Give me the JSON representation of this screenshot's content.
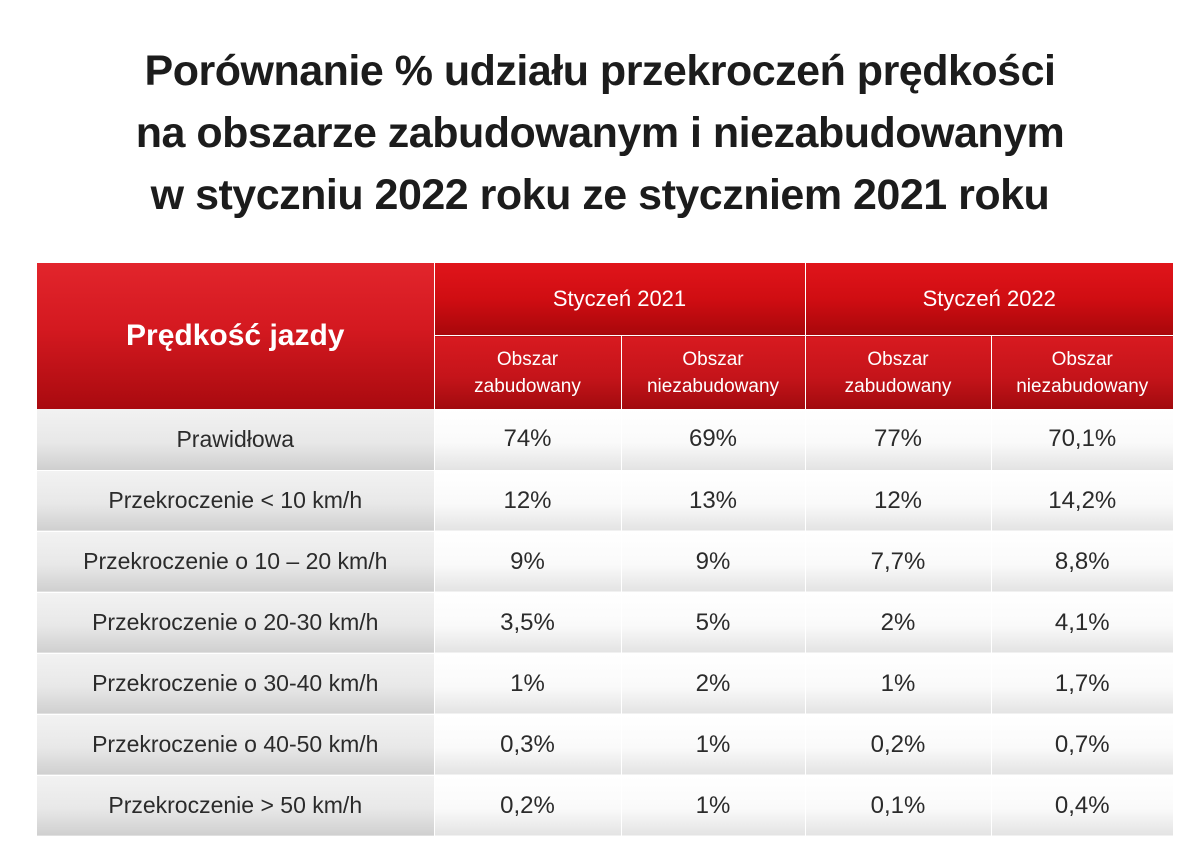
{
  "title_lines": [
    "Porównanie % udziału przekroczeń prędkości",
    "na obszarze zabudowanym i niezabudowanym",
    "w styczniu 2022 roku ze styczniem 2021 roku"
  ],
  "colors": {
    "header_red": "#d00d12",
    "row_label_gray": "#e8e8e8",
    "cell_white": "#ffffff",
    "title_text": "#1c1c1c"
  },
  "chart_data": {
    "type": "table",
    "title": "Porównanie % udziału przekroczeń prędkości na obszarze zabudowanym i niezabudowanym w styczniu 2022 roku ze styczniem 2021 roku",
    "row_header": "Prędkość jazdy",
    "column_groups": [
      {
        "name": "Styczeń 2021",
        "columns": [
          {
            "line1": "Obszar",
            "line2": "zabudowany"
          },
          {
            "line1": "Obszar",
            "line2": "niezabudowany"
          }
        ]
      },
      {
        "name": "Styczeń 2022",
        "columns": [
          {
            "line1": "Obszar",
            "line2": "zabudowany"
          },
          {
            "line1": "Obszar",
            "line2": "niezabudowany"
          }
        ]
      }
    ],
    "rows": [
      {
        "label": "Prawidłowa",
        "values": [
          "74%",
          "69%",
          "77%",
          "70,1%"
        ]
      },
      {
        "label": "Przekroczenie < 10 km/h",
        "values": [
          "12%",
          "13%",
          "12%",
          "14,2%"
        ]
      },
      {
        "label": "Przekroczenie o 10 – 20 km/h",
        "values": [
          "9%",
          "9%",
          "7,7%",
          "8,8%"
        ]
      },
      {
        "label": "Przekroczenie o 20-30 km/h",
        "values": [
          "3,5%",
          "5%",
          "2%",
          "4,1%"
        ]
      },
      {
        "label": "Przekroczenie o 30-40 km/h",
        "values": [
          "1%",
          "2%",
          "1%",
          "1,7%"
        ]
      },
      {
        "label": "Przekroczenie o 40-50 km/h",
        "values": [
          "0,3%",
          "1%",
          "0,2%",
          "0,7%"
        ]
      },
      {
        "label": "Przekroczenie > 50 km/h",
        "values": [
          "0,2%",
          "1%",
          "0,1%",
          "0,4%"
        ]
      }
    ]
  }
}
